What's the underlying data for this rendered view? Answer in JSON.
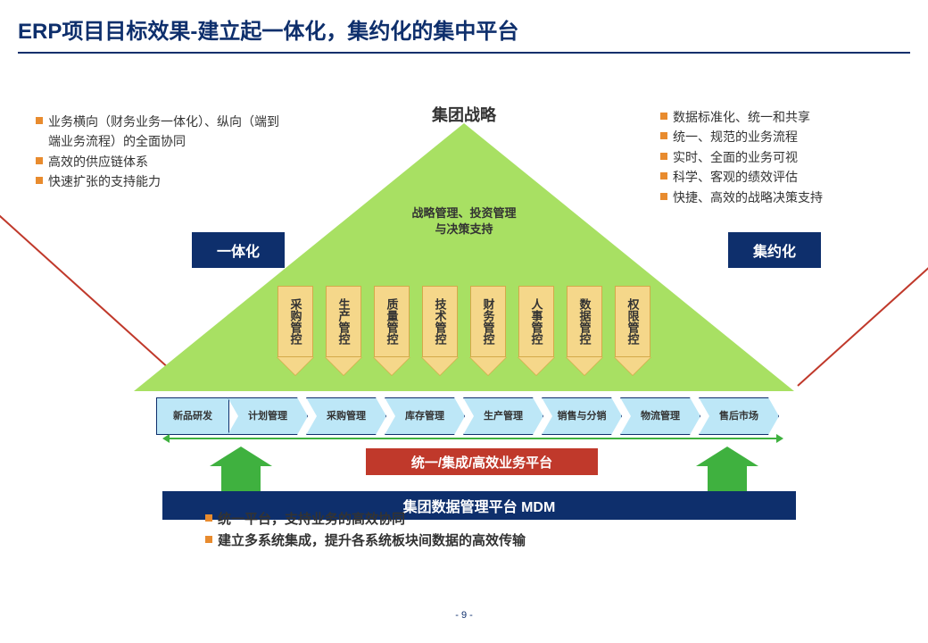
{
  "title": "ERP项目目标效果-建立起一体化，集约化的集中平台",
  "apex_label": "集团战略",
  "left_box": "一体化",
  "right_box": "集约化",
  "triangle_text1": "战略管理、投资管理",
  "triangle_text2": "与决策支持",
  "left_bullets": [
    "业务横向（财务业务一体化）、纵向（端到端业务流程）的全面协同",
    "高效的供应链体系",
    "快速扩张的支持能力"
  ],
  "right_bullets": [
    "数据标准化、统一和共享",
    "统一、规范的业务流程",
    "实时、全面的业务可视",
    "科学、客观的绩效评估",
    "快捷、高效的战略决策支持"
  ],
  "bottom_bullets": [
    "统一平台，支持业务的高效协同",
    "建立多系统集成，提升各系统板块间数据的高效传输"
  ],
  "down_arrows": [
    "采购管控",
    "生产管控",
    "质量管控",
    "技术管控",
    "财务管控",
    "人事管控",
    "数据管控",
    "权限管控"
  ],
  "flow_items": [
    "新品研发",
    "计划管理",
    "采购管理",
    "库存管理",
    "生产管理",
    "销售与分销",
    "物流管理",
    "售后市场"
  ],
  "red_banner": "统一/集成/高效业务平台",
  "blue_banner": "集团数据管理平台  MDM",
  "page_num": "- 9 -",
  "colors": {
    "primary": "#0e2f6c",
    "triangle": "#a8e063",
    "arrow_fill": "#f5d78a",
    "arrow_border": "#d4a94a",
    "flow_bg": "#bde7f7",
    "green": "#3fb13f",
    "red": "#c0392b",
    "bullet": "#e88b2e"
  }
}
